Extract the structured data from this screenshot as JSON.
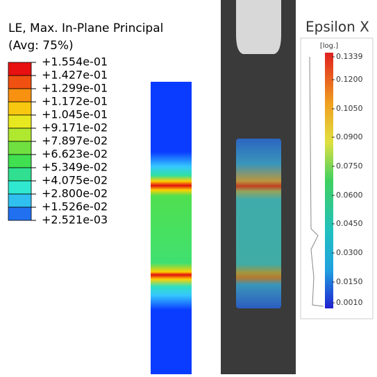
{
  "fea_legend": {
    "title": "LE, Max. In-Plane Principal",
    "subtitle": "(Avg: 75%)",
    "labels": [
      "+1.554e-01",
      "+1.427e-01",
      "+1.299e-01",
      "+1.172e-01",
      "+1.045e-01",
      "+9.171e-02",
      "+7.897e-02",
      "+6.623e-02",
      "+5.349e-02",
      "+4.075e-02",
      "+2.800e-02",
      "+1.526e-02",
      "+2.521e-03"
    ]
  },
  "dic_legend": {
    "title": "Epsilon X",
    "unit": "[log.]",
    "labels": [
      "0.1339",
      "0.1200",
      "0.1050",
      "0.0900",
      "0.0750",
      "0.0600",
      "0.0450",
      "0.0300",
      "0.0150",
      "0.0010"
    ]
  }
}
